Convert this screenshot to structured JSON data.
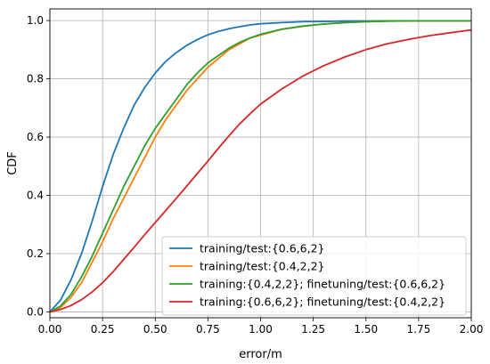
{
  "chart_data": {
    "type": "line",
    "title": "",
    "xlabel": "error/m",
    "ylabel": "CDF",
    "xlim": [
      0,
      2
    ],
    "ylim": [
      -0.02,
      1.04
    ],
    "xticks": [
      "0.00",
      "0.25",
      "0.50",
      "0.75",
      "1.00",
      "1.25",
      "1.50",
      "1.75",
      "2.00"
    ],
    "yticks": [
      "0.0",
      "0.2",
      "0.4",
      "0.6",
      "0.8",
      "1.0"
    ],
    "grid": true,
    "legend_position": "lower-right",
    "series": [
      {
        "name": "training/test:{0.6,6,2}",
        "color": "#1f77b4",
        "x": [
          0.0,
          0.05,
          0.1,
          0.15,
          0.2,
          0.25,
          0.3,
          0.35,
          0.4,
          0.45,
          0.5,
          0.55,
          0.6,
          0.65,
          0.7,
          0.75,
          0.8,
          0.85,
          0.9,
          0.95,
          1.0,
          1.1,
          1.2,
          1.3,
          1.4,
          1.5,
          1.6,
          1.75,
          1.9,
          2.0
        ],
        "y": [
          0.0,
          0.04,
          0.11,
          0.2,
          0.31,
          0.43,
          0.54,
          0.63,
          0.71,
          0.77,
          0.82,
          0.86,
          0.89,
          0.915,
          0.935,
          0.951,
          0.963,
          0.972,
          0.979,
          0.985,
          0.989,
          0.993,
          0.996,
          0.997,
          0.998,
          0.998,
          0.999,
          0.999,
          0.999,
          0.999
        ]
      },
      {
        "name": "training/test:{0.4,2,2}",
        "color": "#ff7f0e",
        "x": [
          0.0,
          0.05,
          0.1,
          0.15,
          0.2,
          0.25,
          0.3,
          0.35,
          0.4,
          0.45,
          0.5,
          0.55,
          0.6,
          0.65,
          0.7,
          0.75,
          0.8,
          0.85,
          0.9,
          0.95,
          1.0,
          1.1,
          1.2,
          1.3,
          1.4,
          1.5,
          1.6,
          1.75,
          1.9,
          2.0
        ],
        "y": [
          0.0,
          0.015,
          0.05,
          0.1,
          0.17,
          0.24,
          0.32,
          0.39,
          0.46,
          0.53,
          0.6,
          0.66,
          0.71,
          0.76,
          0.8,
          0.84,
          0.87,
          0.9,
          0.92,
          0.94,
          0.95,
          0.97,
          0.98,
          0.988,
          0.993,
          0.996,
          0.998,
          0.999,
          0.999,
          0.999
        ]
      },
      {
        "name": "training:{0.4,2,2}; finetuning/test:{0.6,6,2}",
        "color": "#2ca02c",
        "x": [
          0.0,
          0.05,
          0.1,
          0.15,
          0.2,
          0.25,
          0.3,
          0.35,
          0.4,
          0.45,
          0.5,
          0.55,
          0.6,
          0.65,
          0.7,
          0.75,
          0.8,
          0.85,
          0.9,
          0.95,
          1.0,
          1.1,
          1.2,
          1.3,
          1.4,
          1.5,
          1.6,
          1.75,
          1.9,
          2.0
        ],
        "y": [
          0.0,
          0.02,
          0.06,
          0.12,
          0.19,
          0.27,
          0.35,
          0.43,
          0.5,
          0.57,
          0.63,
          0.68,
          0.73,
          0.78,
          0.82,
          0.855,
          0.88,
          0.905,
          0.925,
          0.94,
          0.953,
          0.97,
          0.981,
          0.988,
          0.993,
          0.996,
          0.998,
          0.999,
          0.999,
          0.999
        ]
      },
      {
        "name": "training:{0.6,6,2}; finetuning/test:{0.4,2,2}",
        "color": "#d62728",
        "x": [
          0.0,
          0.05,
          0.1,
          0.15,
          0.2,
          0.25,
          0.3,
          0.35,
          0.4,
          0.45,
          0.5,
          0.55,
          0.6,
          0.65,
          0.7,
          0.75,
          0.8,
          0.85,
          0.9,
          0.95,
          1.0,
          1.1,
          1.2,
          1.3,
          1.4,
          1.5,
          1.6,
          1.7,
          1.8,
          1.9,
          2.0
        ],
        "y": [
          0.0,
          0.008,
          0.022,
          0.042,
          0.068,
          0.1,
          0.138,
          0.18,
          0.222,
          0.265,
          0.307,
          0.348,
          0.39,
          0.432,
          0.475,
          0.518,
          0.562,
          0.604,
          0.645,
          0.68,
          0.713,
          0.765,
          0.809,
          0.845,
          0.875,
          0.9,
          0.92,
          0.935,
          0.948,
          0.958,
          0.968
        ]
      }
    ]
  }
}
